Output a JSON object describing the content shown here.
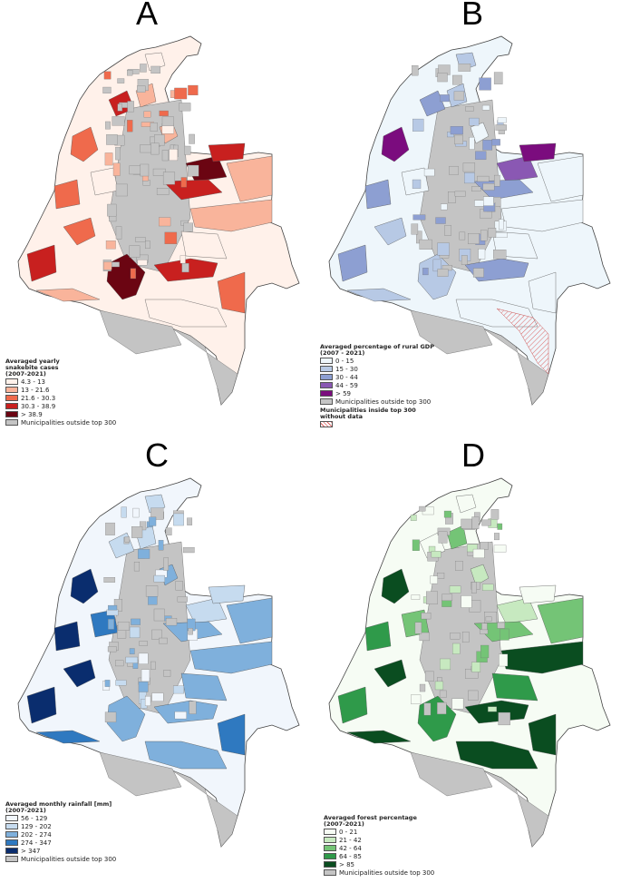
{
  "panels": [
    {
      "letter": "A",
      "legend_title_lines": [
        "Averaged yearly",
        "snakebite cases",
        "(2007-2021)"
      ],
      "classes": [
        {
          "label": "4.3 - 13",
          "color": "#fff1ea"
        },
        {
          "label": "13 - 21.6",
          "color": "#f9b49b"
        },
        {
          "label": "21.6 - 30.3",
          "color": "#ef6a4c"
        },
        {
          "label": "30.3 - 38.9",
          "color": "#c8201f"
        },
        {
          "label": "> 38.9",
          "color": "#6b0512"
        }
      ],
      "outside_label": "Municipalities outside top 300",
      "outside_color": "#c4c4c4"
    },
    {
      "letter": "B",
      "legend_title_lines": [
        "Averaged percentage of rural GDP",
        "(2007 - 2021)"
      ],
      "classes": [
        {
          "label": "0 - 15",
          "color": "#eef6fb"
        },
        {
          "label": "15 - 30",
          "color": "#b7c9e5"
        },
        {
          "label": "30 - 44",
          "color": "#8d9fd2"
        },
        {
          "label": "44 - 59",
          "color": "#8a58b3"
        },
        {
          "label": "> 59",
          "color": "#7b0c7e"
        }
      ],
      "outside_label": "Municipalities outside top 300",
      "outside_color": "#c4c4c4",
      "nodata_title_lines": [
        "Municipalities inside top 300",
        "without data"
      ]
    },
    {
      "letter": "C",
      "legend_title_lines": [
        "Averaged monthly rainfall [mm]",
        "(2007-2021)"
      ],
      "classes": [
        {
          "label": "56 - 129",
          "color": "#f1f6fc"
        },
        {
          "label": "129 - 202",
          "color": "#c6dbef"
        },
        {
          "label": "202 - 274",
          "color": "#7fb0dc"
        },
        {
          "label": "274 - 347",
          "color": "#2f79c0"
        },
        {
          "label": "> 347",
          "color": "#0a2d6e"
        }
      ],
      "outside_label": "Municipalities outside top 300",
      "outside_color": "#c4c4c4"
    },
    {
      "letter": "D",
      "legend_title_lines": [
        "Averaged forest percentage",
        "(2007-2021)"
      ],
      "classes": [
        {
          "label": "0 - 21",
          "color": "#f6fcf4"
        },
        {
          "label": "21 - 42",
          "color": "#c7e9c0"
        },
        {
          "label": "42 - 64",
          "color": "#74c476"
        },
        {
          "label": "64 - 85",
          "color": "#2f9a4a"
        },
        {
          "label": "> 85",
          "color": "#0a4d20"
        }
      ],
      "outside_label": "Municipalities outside top 300",
      "outside_color": "#c4c4c4"
    }
  ]
}
